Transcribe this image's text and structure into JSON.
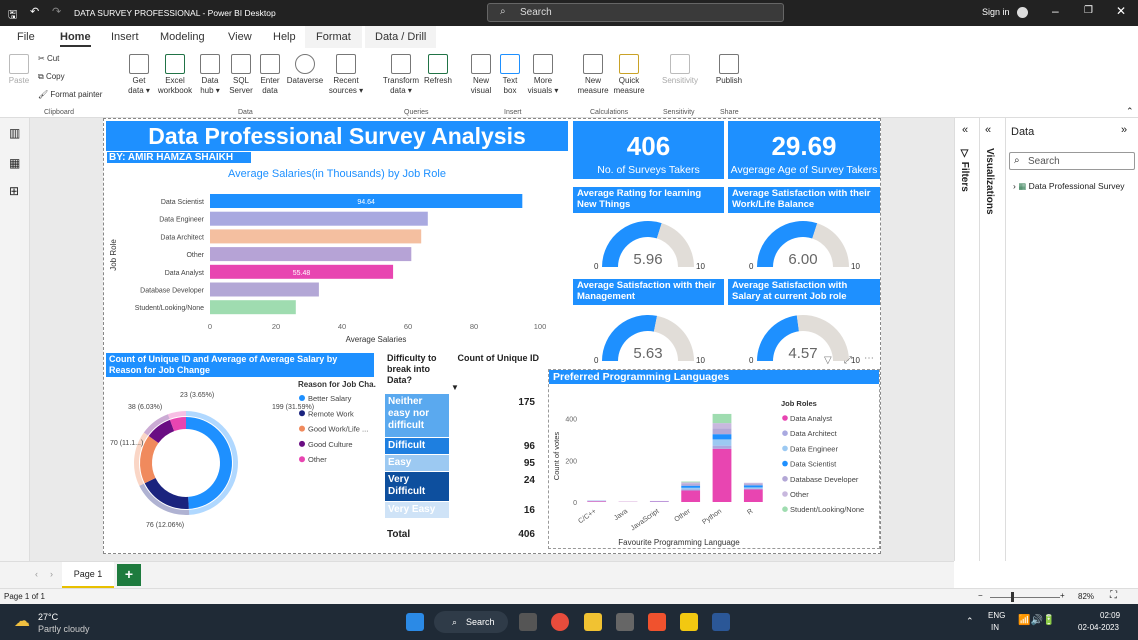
{
  "window": {
    "title": "DATA SURVEY PROFESSIONAL - Power BI Desktop",
    "search_placeholder": "Search",
    "sign_in": "Sign in"
  },
  "ribbon_tabs": [
    "File",
    "Home",
    "Insert",
    "Modeling",
    "View",
    "Help",
    "Format",
    "Data / Drill"
  ],
  "ribbon": {
    "clipboard": {
      "paste": "Paste",
      "cut": "Cut",
      "copy": "Copy",
      "format_painter": "Format painter",
      "group": "Clipboard"
    },
    "data": {
      "get_data": "Get data ▾",
      "excel": "Excel workbook",
      "data_hub": "Data hub ▾",
      "sql": "SQL Server",
      "enter_data": "Enter data",
      "dataverse": "Dataverse",
      "recent": "Recent sources ▾",
      "group": "Data"
    },
    "queries": {
      "transform": "Transform data ▾",
      "refresh": "Refresh",
      "group": "Queries"
    },
    "insert": {
      "new_visual": "New visual",
      "text_box": "Text box",
      "more_visuals": "More visuals ▾",
      "group": "Insert"
    },
    "calculations": {
      "new_measure": "New measure",
      "quick_measure": "Quick measure",
      "group": "Calculations"
    },
    "sensitivity": {
      "label": "Sensitivity",
      "group": "Sensitivity"
    },
    "share": {
      "publish": "Publish",
      "group": "Share"
    }
  },
  "report": {
    "title": "Data Professional Survey Analysis",
    "author": "BY: AMIR HAMZA SHAIKH",
    "kpi1": {
      "value": "406",
      "label": "No. of Surveys Takers"
    },
    "kpi2": {
      "value": "29.69",
      "label": "Avgerage Age of Survey Takers"
    },
    "gauges": [
      {
        "title": "Average Rating for learning New Things",
        "value": "5.96",
        "fraction": 0.596,
        "min": "0",
        "max": "10"
      },
      {
        "title": "Average Satisfaction with their Work/Life Balance",
        "value": "6.00",
        "fraction": 0.6,
        "min": "0",
        "max": "10"
      },
      {
        "title": "Average Satisfaction with their Management",
        "value": "5.63",
        "fraction": 0.563,
        "min": "0",
        "max": "10"
      },
      {
        "title": "Average Satisfaction with Salary at current Job role",
        "value": "4.57",
        "fraction": 0.457,
        "min": "0",
        "max": "10"
      }
    ],
    "difficulty_table": {
      "headers": [
        "Difficulty to break into Data?",
        "Count of Unique ID"
      ],
      "rows": [
        {
          "label": "Neither easy nor difficult",
          "value": "175",
          "color": "#5aa9ef"
        },
        {
          "label": "Difficult",
          "value": "96",
          "color": "#1e7fe0"
        },
        {
          "label": "Easy",
          "value": "95",
          "color": "#9cc9f2"
        },
        {
          "label": "Very Difficult",
          "value": "24",
          "color": "#0d4f9e"
        },
        {
          "label": "Very Easy",
          "value": "16",
          "color": "#cfe3f7"
        }
      ],
      "total_label": "Total",
      "total_value": "406"
    }
  },
  "chart_data": [
    {
      "type": "bar",
      "title": "Average Salaries(in Thousands) by Job Role",
      "xlabel": "Average Salaries",
      "ylabel": "Job Role",
      "categories": [
        "Data Scientist",
        "Data Engineer",
        "Data Architect",
        "Other",
        "Data Analyst",
        "Database Developer",
        "Student/Looking/None"
      ],
      "values": [
        94.64,
        66,
        64,
        61,
        55.48,
        33,
        26
      ],
      "data_labels": [
        "94.64",
        "",
        "",
        "",
        "55.48",
        "",
        ""
      ],
      "colors": [
        "#1e90ff",
        "#a9a9e0",
        "#f4bfa0",
        "#b6a3d6",
        "#e845b1",
        "#b3a7d6",
        "#9fdcb0"
      ],
      "xlim": [
        0,
        100
      ],
      "xticks": [
        "0",
        "20",
        "40",
        "60",
        "80",
        "100"
      ]
    },
    {
      "type": "pie",
      "title": "Count of Unique ID and Average of Average Salary by Reason for Job Change",
      "legend_title": "Reason for Job Cha...",
      "labels": [
        "Better Salary",
        "Remote Work",
        "Good Work/Life ...",
        "Good Culture",
        "Other"
      ],
      "values": [
        199,
        76,
        70,
        38,
        23
      ],
      "colors": [
        "#1e90ff",
        "#1a237e",
        "#f08a5d",
        "#6a0d83",
        "#e845b1"
      ],
      "data_labels": [
        "199 (31.59%)",
        "76 (12.06%)",
        "70 (11.1...)",
        "38 (6.03%)",
        "23 (3.65%)"
      ]
    },
    {
      "type": "bar",
      "title": "Preferred Programming Languages",
      "xlabel": "Favourite Programming Language",
      "ylabel": "Count of votes",
      "categories": [
        "C/C++",
        "Java",
        "JavaScript",
        "Other",
        "Python",
        "R"
      ],
      "series": [
        {
          "name": "Data Analyst",
          "values": [
            3,
            1,
            2,
            55,
            255,
            60
          ]
        },
        {
          "name": "Data Architect",
          "values": [
            1,
            0,
            0,
            5,
            15,
            4
          ]
        },
        {
          "name": "Data Engineer",
          "values": [
            1,
            0,
            1,
            8,
            30,
            6
          ]
        },
        {
          "name": "Data Scientist",
          "values": [
            1,
            0,
            1,
            10,
            25,
            10
          ]
        },
        {
          "name": "Database Developer",
          "values": [
            1,
            1,
            1,
            8,
            28,
            6
          ]
        },
        {
          "name": "Other",
          "values": [
            0,
            0,
            0,
            8,
            25,
            6
          ]
        },
        {
          "name": "Student/Looking/None",
          "values": [
            0,
            0,
            0,
            4,
            44,
            0
          ]
        }
      ],
      "colors": [
        "#e845b1",
        "#a9a9e0",
        "#9cc9f2",
        "#1e90ff",
        "#b3a7d6",
        "#c8b8de",
        "#9fdcb0"
      ],
      "ylim": [
        0,
        460
      ],
      "yticks": [
        "0",
        "200",
        "400"
      ],
      "legend_title": "Job Roles"
    }
  ],
  "panes": {
    "filters": "Filters",
    "visualizations": "Visualizations",
    "data": "Data",
    "search_placeholder": "Search",
    "table": "Data Professional Survey"
  },
  "pages": {
    "tab": "Page 1",
    "status": "Page 1 of 1",
    "zoom": "82%"
  },
  "taskbar": {
    "temp": "27°C",
    "weather": "Partly cloudy",
    "search": "Search",
    "lang1": "ENG",
    "lang2": "IN",
    "time": "02:09",
    "date": "02-04-2023"
  }
}
